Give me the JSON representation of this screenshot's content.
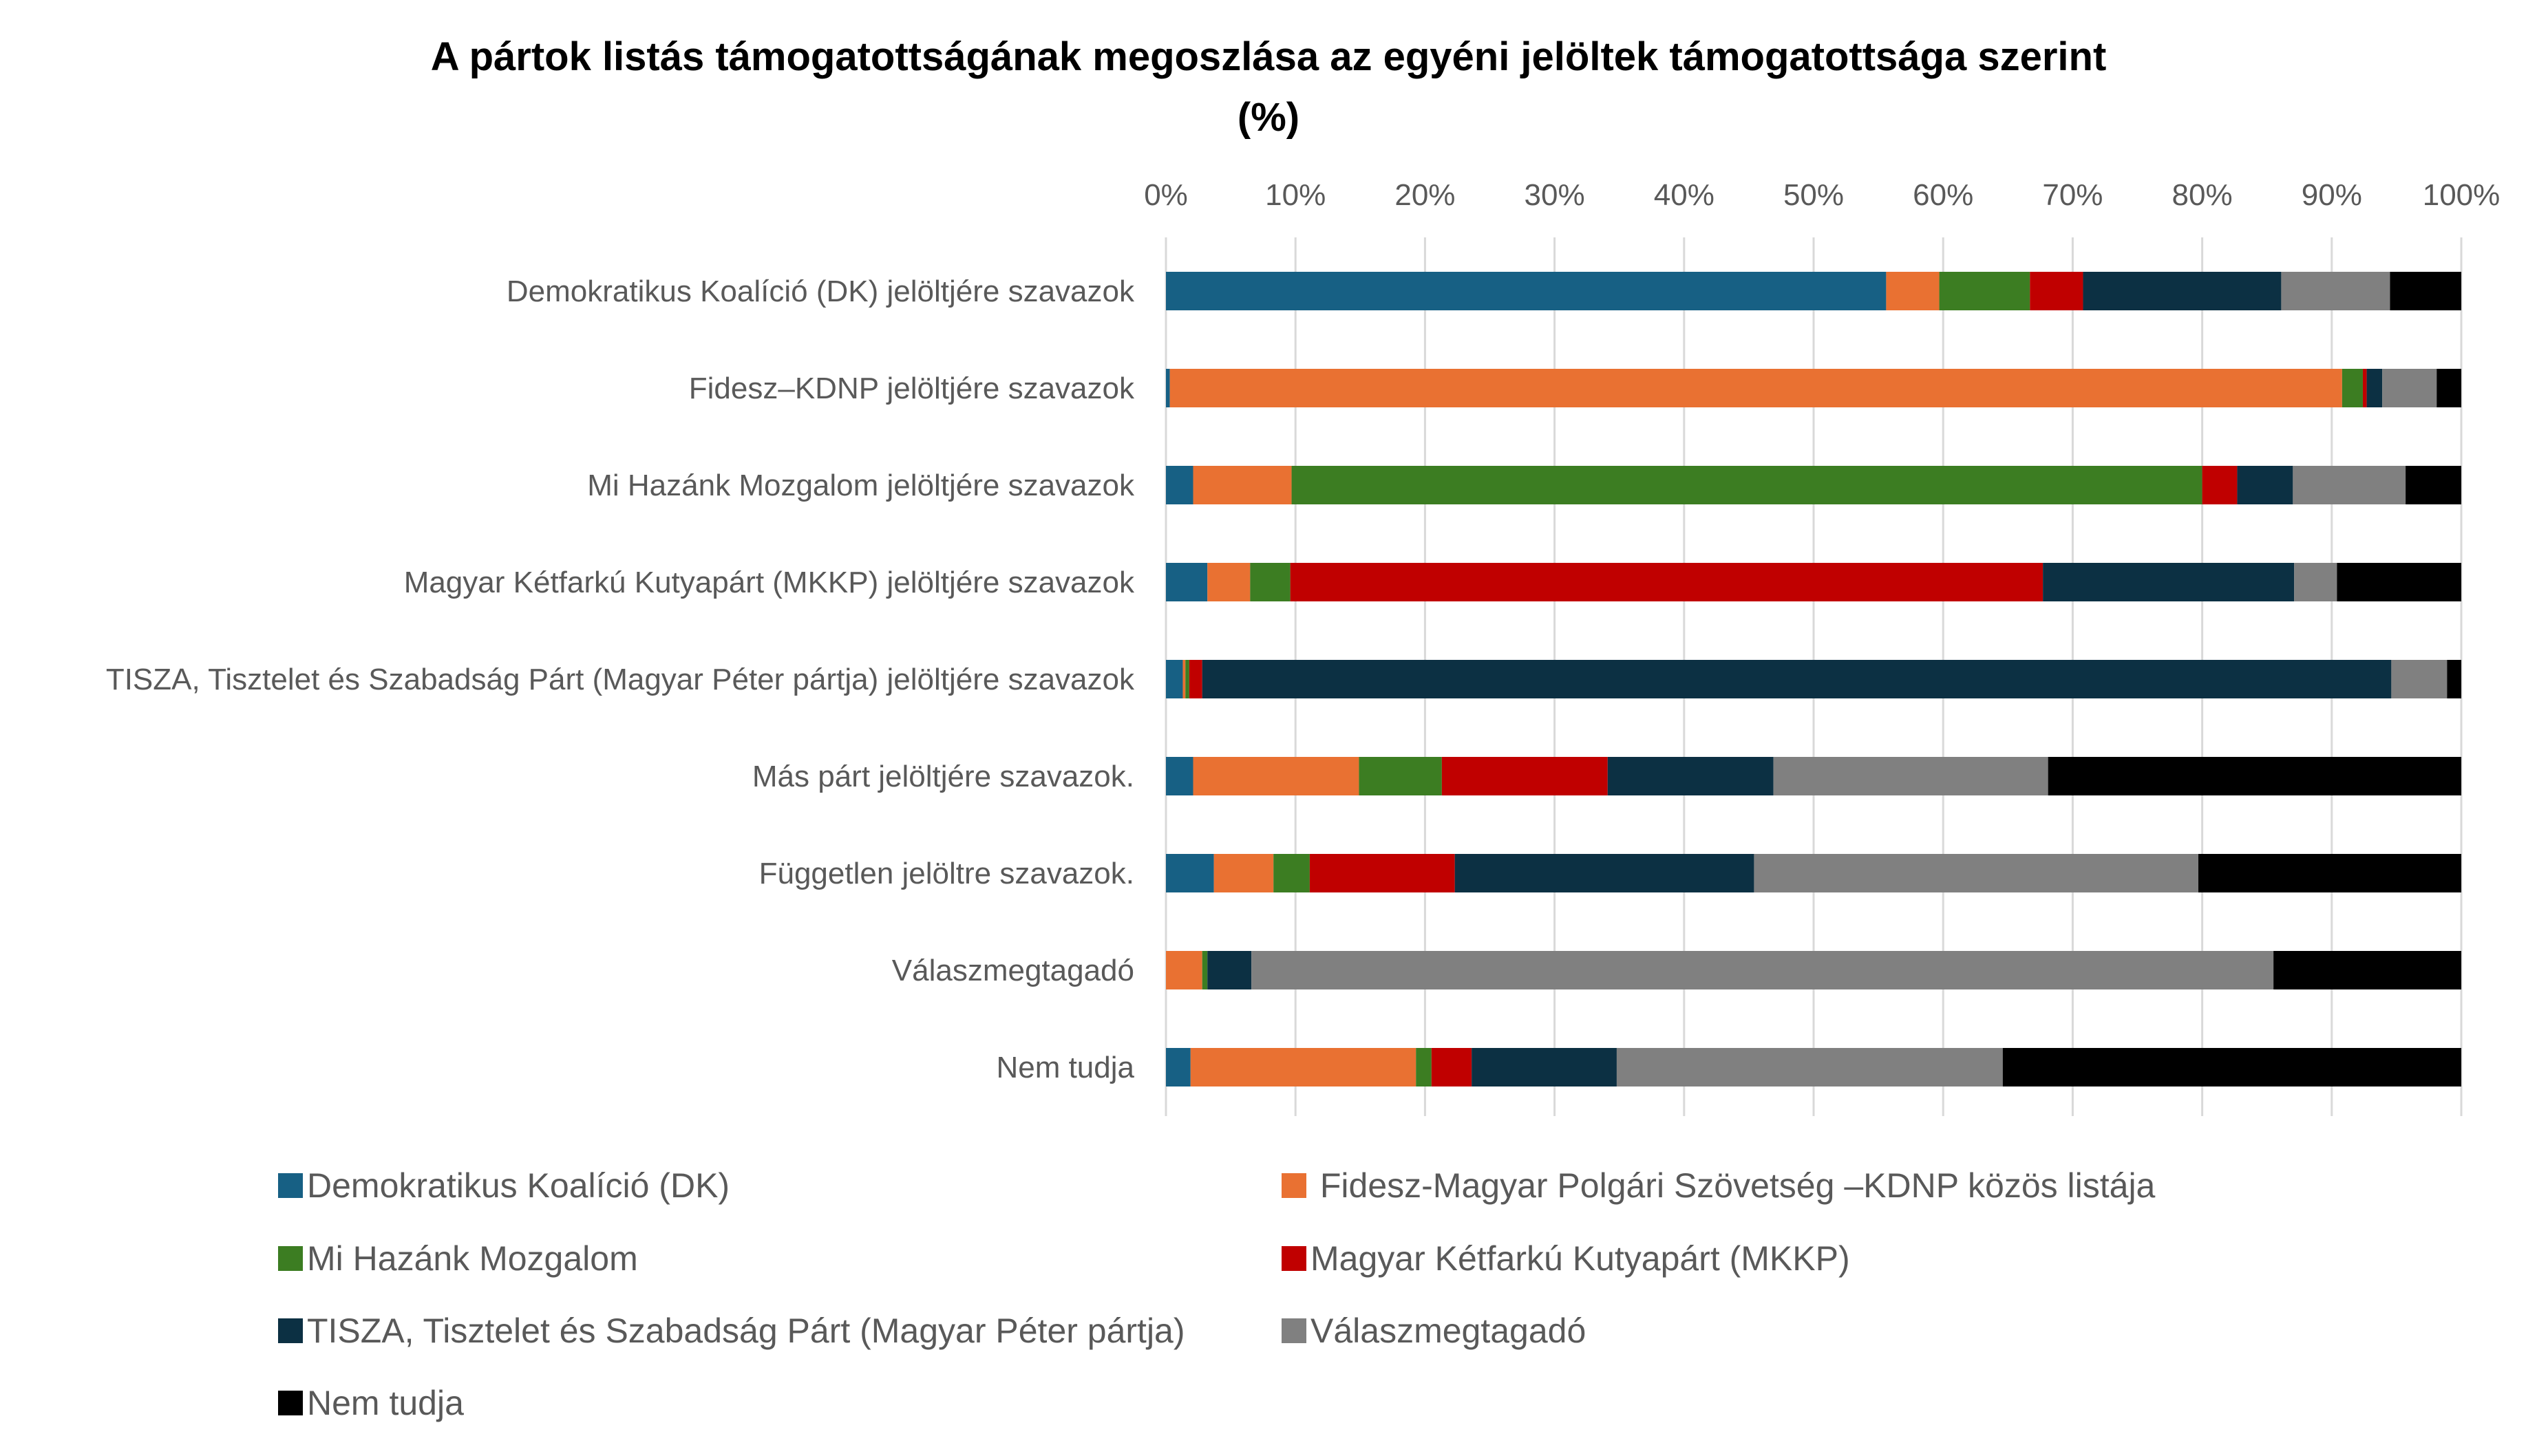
{
  "chart_data": {
    "type": "bar",
    "orientation": "horizontal",
    "stacked": "percent",
    "title": "A pártok listás támogatottságának megoszlása az egyéni jelöltek támogatottsága szerint",
    "subtitle": "(%)",
    "xlabel": "",
    "ylabel": "",
    "xlim": [
      0,
      100
    ],
    "x_ticks": [
      "0%",
      "10%",
      "20%",
      "30%",
      "40%",
      "50%",
      "60%",
      "70%",
      "80%",
      "90%",
      "100%"
    ],
    "x_axis_position": "top",
    "grid": true,
    "legend_position": "bottom",
    "categories": [
      "Demokratikus Koalíció (DK) jelöltjére szavazok",
      "Fidesz–KDNP jelöltjére szavazok",
      "Mi Hazánk Mozgalom jelöltjére szavazok",
      "Magyar Kétfarkú Kutyapárt (MKKP) jelöltjére szavazok",
      "TISZA, Tisztelet és Szabadság Párt (Magyar Péter pártja) jelöltjére szavazok",
      "Más párt jelöltjére szavazok.",
      "Független jelöltre szavazok.",
      "Válaszmegtagadó",
      "Nem tudja"
    ],
    "series": [
      {
        "name": "Demokratikus Koalíció (DK)",
        "color": "#176084",
        "values": [
          55.6,
          0.3,
          2.1,
          3.2,
          1.3,
          2.1,
          3.7,
          0,
          1.9
        ]
      },
      {
        "name": " Fidesz-Magyar Polgári Szövetség –KDNP közös listája",
        "color": "#E97132",
        "values": [
          4.1,
          90.5,
          7.6,
          3.3,
          0.2,
          12.8,
          4.6,
          2.8,
          17.4
        ]
      },
      {
        "name": "Mi Hazánk Mozgalom",
        "color": "#3C7D22",
        "values": [
          7.0,
          1.6,
          70.3,
          3.1,
          0.3,
          6.4,
          2.8,
          0.4,
          1.2
        ]
      },
      {
        "name": "Magyar Kétfarkú Kutyapárt (MKKP)",
        "color": "#C00000",
        "values": [
          4.1,
          0.3,
          2.7,
          58.1,
          1.0,
          12.8,
          11.2,
          0,
          3.1
        ]
      },
      {
        "name": "TISZA, Tisztelet és Szabadság Párt (Magyar Péter pártja)",
        "color": "#0C3043",
        "values": [
          15.3,
          1.2,
          4.3,
          19.4,
          91.8,
          12.8,
          23.1,
          3.4,
          11.2
        ]
      },
      {
        "name": "Válaszmegtagadó",
        "color": "#808080",
        "values": [
          8.4,
          4.2,
          8.7,
          3.3,
          4.3,
          21.2,
          34.3,
          78.9,
          29.8
        ]
      },
      {
        "name": "Nem tudja",
        "color": "#000000",
        "values": [
          5.5,
          1.9,
          4.3,
          9.6,
          1.1,
          31.9,
          20.3,
          14.5,
          35.4
        ]
      }
    ]
  }
}
